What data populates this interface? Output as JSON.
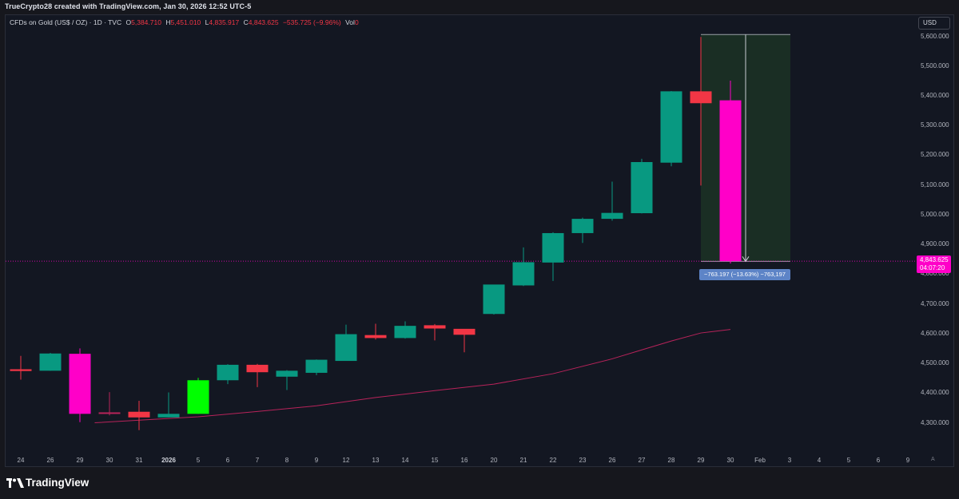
{
  "header": {
    "credit": "TrueCrypto28 created with TradingView.com, Jan 30, 2026 12:52 UTC-5"
  },
  "legend": {
    "symbol": "CFDs on Gold (US$ / OZ) · 1D · TVC",
    "o_label": "O",
    "o_value": "5,384.710",
    "h_label": "H",
    "h_value": "5,451.010",
    "l_label": "L",
    "l_value": "4,835.917",
    "c_label": "C",
    "c_value": "4,843.625",
    "change": "−535.725 (−9.96%)",
    "vol_label": "Vol",
    "vol_value": "0"
  },
  "currency_button": "USD",
  "price_axis": [
    "5,600.000",
    "5,500.000",
    "5,400.000",
    "5,300.000",
    "5,200.000",
    "5,100.000",
    "5,000.000",
    "4,900.000",
    "4,800.000",
    "4,700.000",
    "4,600.000",
    "4,500.000",
    "4,400.000",
    "4,300.000"
  ],
  "time_axis": [
    "24",
    "26",
    "29",
    "30",
    "31",
    "2026",
    "5",
    "6",
    "7",
    "8",
    "9",
    "12",
    "13",
    "14",
    "15",
    "16",
    "20",
    "21",
    "22",
    "23",
    "26",
    "27",
    "28",
    "29",
    "30",
    "Feb",
    "3",
    "4",
    "5",
    "6",
    "9"
  ],
  "auto_button": "A",
  "current_price": {
    "price": "4,843.625",
    "countdown": "04:07:20"
  },
  "measure_label": "−763.197 (−13.63%) −763,197",
  "brand": "TradingView",
  "colors": {
    "up": "#089981",
    "down": "#f23645",
    "highlight": "#ff00c8",
    "green_bright": "#00ff00",
    "ma": "#b8235a"
  },
  "chart_data": {
    "type": "candlestick",
    "categories": [
      "24",
      "26",
      "29",
      "30",
      "31",
      "2026",
      "5",
      "6",
      "7",
      "8",
      "9",
      "12",
      "13",
      "14",
      "15",
      "16",
      "20",
      "21",
      "22",
      "23",
      "26",
      "27",
      "28",
      "29",
      "30"
    ],
    "candles": [
      {
        "o": 4480,
        "h": 4525,
        "l": 4445,
        "c": 4474,
        "color": "down"
      },
      {
        "o": 4475,
        "h": 4535,
        "l": 4475,
        "c": 4533,
        "color": "up"
      },
      {
        "o": 4532,
        "h": 4550,
        "l": 4302,
        "c": 4330,
        "color": "highlight"
      },
      {
        "o": 4330,
        "h": 4403,
        "l": 4325,
        "c": 4335,
        "color": "ma"
      },
      {
        "o": 4337,
        "h": 4374,
        "l": 4275,
        "c": 4318,
        "color": "down"
      },
      {
        "o": 4318,
        "h": 4402,
        "l": 4318,
        "c": 4330,
        "color": "up"
      },
      {
        "o": 4330,
        "h": 4451,
        "l": 4330,
        "c": 4443,
        "color": "green_bright"
      },
      {
        "o": 4443,
        "h": 4497,
        "l": 4430,
        "c": 4495,
        "color": "up"
      },
      {
        "o": 4495,
        "h": 4498,
        "l": 4420,
        "c": 4470,
        "color": "down"
      },
      {
        "o": 4455,
        "h": 4477,
        "l": 4410,
        "c": 4475,
        "color": "up"
      },
      {
        "o": 4468,
        "h": 4513,
        "l": 4460,
        "c": 4512,
        "color": "up"
      },
      {
        "o": 4508,
        "h": 4630,
        "l": 4508,
        "c": 4598,
        "color": "up"
      },
      {
        "o": 4595,
        "h": 4633,
        "l": 4580,
        "c": 4585,
        "color": "down"
      },
      {
        "o": 4585,
        "h": 4641,
        "l": 4583,
        "c": 4626,
        "color": "up"
      },
      {
        "o": 4628,
        "h": 4632,
        "l": 4577,
        "c": 4617,
        "color": "down"
      },
      {
        "o": 4616,
        "h": 4615,
        "l": 4537,
        "c": 4596,
        "color": "down"
      },
      {
        "o": 4666,
        "h": 4763,
        "l": 4664,
        "c": 4765,
        "color": "up"
      },
      {
        "o": 4762,
        "h": 4890,
        "l": 4760,
        "c": 4840,
        "color": "up"
      },
      {
        "o": 4839,
        "h": 4941,
        "l": 4777,
        "c": 4938,
        "color": "up"
      },
      {
        "o": 4938,
        "h": 4990,
        "l": 4905,
        "c": 4986,
        "color": "up"
      },
      {
        "o": 4986,
        "h": 5111,
        "l": 4980,
        "c": 5006,
        "color": "up"
      },
      {
        "o": 5005,
        "h": 5188,
        "l": 5004,
        "c": 5177,
        "color": "up"
      },
      {
        "o": 5175,
        "h": 5416,
        "l": 5163,
        "c": 5415,
        "color": "up"
      },
      {
        "o": 5415,
        "h": 5598,
        "l": 5098,
        "c": 5375,
        "color": "down"
      },
      {
        "o": 5384.71,
        "h": 5451.01,
        "l": 4835.917,
        "c": 4843.625,
        "color": "highlight"
      }
    ],
    "moving_average": [
      {
        "i": 2.5,
        "v": 4300
      },
      {
        "i": 6,
        "v": 4320
      },
      {
        "i": 8,
        "v": 4338
      },
      {
        "i": 10,
        "v": 4357
      },
      {
        "i": 12,
        "v": 4385
      },
      {
        "i": 14,
        "v": 4408
      },
      {
        "i": 16,
        "v": 4430
      },
      {
        "i": 18,
        "v": 4465
      },
      {
        "i": 20,
        "v": 4515
      },
      {
        "i": 21,
        "v": 4545
      },
      {
        "i": 22,
        "v": 4575
      },
      {
        "i": 23,
        "v": 4602
      },
      {
        "i": 24,
        "v": 4614
      }
    ],
    "ylim": [
      4240,
      5660
    ],
    "last_price": 4843.625,
    "measure": {
      "from": 5606,
      "to": 4843,
      "change": "−763.197 (−13.63%)"
    }
  }
}
